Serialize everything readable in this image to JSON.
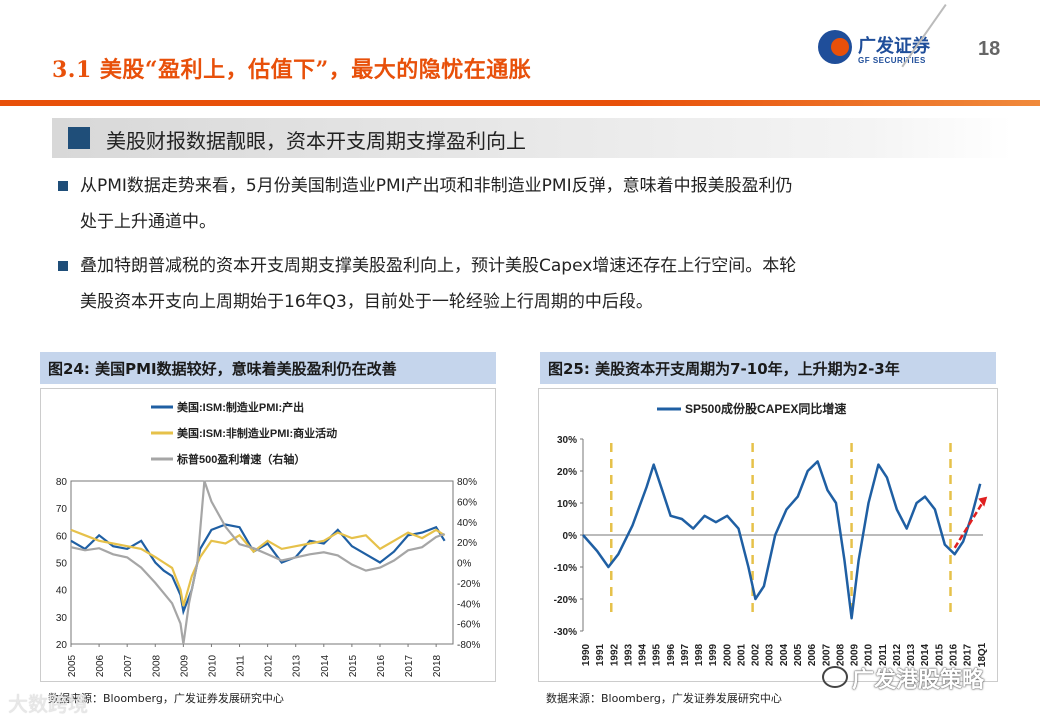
{
  "header": {
    "title": "3.1 美股“盈利上，估值下”，最大的隐忧在通胀",
    "logo_cn": "广发证券",
    "logo_en": "GF SECURITIES",
    "page_number": "18"
  },
  "subheading": "美股财报数据靓眼，资本开支周期支撑盈利向上",
  "bullets": [
    {
      "line1": "从PMI数据走势来看，5月份美国制造业PMI产出项和非制造业PMI反弹，意味着中报美股盈利仍",
      "line2": "处于上升通道中。"
    },
    {
      "line1": "叠加特朗普减税的资本开支周期支撑美股盈利向上，预计美股Capex增速还存在上行空间。本轮",
      "line2": "美股资本开支向上周期始于16年Q3，目前处于一轮经验上行周期的中后段。"
    }
  ],
  "figure24": {
    "caption": "图24:  美国PMI数据较好，意味着美股盈利仍在改善",
    "source": "数据来源：Bloomberg，广发证券发展研究中心"
  },
  "figure25": {
    "caption": "图25:  美股资本开支周期为7-10年，上升期为2-3年",
    "source": "数据来源：Bloomberg，广发证券发展研究中心"
  },
  "watermark": {
    "right": "广发港股策略",
    "left": "大数跨境"
  },
  "colors": {
    "accent": "#e8500a",
    "navy": "#1f4e79",
    "series_blue": "#1f5fa3",
    "series_gold": "#e6c14a",
    "series_gray": "#a6a6a6"
  },
  "chart_data": [
    {
      "type": "line",
      "legend": [
        "美国:ISM:制造业PMI:产出",
        "美国:ISM:非制造业PMI:商业活动",
        "标普500盈利增速（右轴）"
      ],
      "x": [
        "2005",
        "2006",
        "2007",
        "2008",
        "2009",
        "2010",
        "2011",
        "2012",
        "2013",
        "2014",
        "2015",
        "2016",
        "2017",
        "2018"
      ],
      "left_ticks": [
        "80",
        "70",
        "60",
        "50",
        "40",
        "30",
        "20"
      ],
      "right_ticks": [
        "80%",
        "60%",
        "40%",
        "20%",
        "0%",
        "-20%",
        "-40%",
        "-60%",
        "-80%"
      ],
      "ylim_left": [
        20,
        80
      ],
      "ylim_right": [
        -80,
        80
      ],
      "series": [
        {
          "name": "美国:ISM:制造业PMI:产出",
          "color": "#1f5fa3",
          "axis": "left",
          "x": [
            2005,
            2005.5,
            2006,
            2006.5,
            2007,
            2007.5,
            2008,
            2008.3,
            2008.6,
            2008.9,
            2009,
            2009.3,
            2009.6,
            2010,
            2010.5,
            2011,
            2011.5,
            2012,
            2012.5,
            2013,
            2013.5,
            2014,
            2014.5,
            2015,
            2015.5,
            2016,
            2016.5,
            2017,
            2017.5,
            2018,
            2018.3
          ],
          "y": [
            58,
            55,
            60,
            56,
            55,
            58,
            50,
            47,
            45,
            38,
            32,
            40,
            55,
            62,
            64,
            63,
            54,
            57,
            50,
            52,
            58,
            57,
            62,
            56,
            53,
            50,
            54,
            60,
            61,
            63,
            58
          ]
        },
        {
          "name": "美国:ISM:非制造业PMI:商业活动",
          "color": "#e6c14a",
          "axis": "left",
          "x": [
            2005,
            2005.5,
            2006,
            2006.5,
            2007,
            2007.5,
            2008,
            2008.3,
            2008.6,
            2008.9,
            2009,
            2009.3,
            2009.6,
            2010,
            2010.5,
            2011,
            2011.5,
            2012,
            2012.5,
            2013,
            2013.5,
            2014,
            2014.5,
            2015,
            2015.5,
            2016,
            2016.5,
            2017,
            2017.5,
            2018,
            2018.3
          ],
          "y": [
            62,
            60,
            58,
            57,
            56,
            55,
            52,
            50,
            48,
            40,
            34,
            45,
            52,
            58,
            57,
            60,
            54,
            58,
            55,
            56,
            57,
            58,
            61,
            59,
            60,
            55,
            58,
            61,
            59,
            62,
            60
          ]
        },
        {
          "name": "标普500盈利增速（右轴）",
          "color": "#a6a6a6",
          "axis": "right",
          "x": [
            2005,
            2005.5,
            2006,
            2006.5,
            2007,
            2007.5,
            2008,
            2008.3,
            2008.6,
            2008.9,
            2009,
            2009.2,
            2009.5,
            2009.75,
            2010,
            2010.5,
            2011,
            2011.5,
            2012,
            2012.5,
            2013,
            2013.5,
            2014,
            2014.5,
            2015,
            2015.5,
            2016,
            2016.5,
            2017,
            2017.5,
            2018,
            2018.3
          ],
          "y": [
            15,
            12,
            14,
            8,
            5,
            -5,
            -20,
            -30,
            -40,
            -60,
            -80,
            -40,
            0,
            80,
            60,
            35,
            18,
            14,
            8,
            2,
            5,
            8,
            10,
            7,
            -2,
            -8,
            -5,
            2,
            12,
            15,
            25,
            28
          ]
        }
      ]
    },
    {
      "type": "line",
      "title": "SP500成份股CAPEX同比增速",
      "legend": [
        "SP500成份股CAPEX同比增速"
      ],
      "categories": [
        "1990",
        "1991",
        "1992",
        "1993",
        "1994",
        "1995",
        "1996",
        "1997",
        "1998",
        "1999",
        "2000",
        "2001",
        "2002",
        "2003",
        "2004",
        "2005",
        "2006",
        "2007",
        "2008",
        "2009",
        "2010",
        "2011",
        "2012",
        "2013",
        "2014",
        "2015",
        "2016",
        "2017",
        "18Q1"
      ],
      "ylabels": [
        "30%",
        "20%",
        "10%",
        "0%",
        "-10%",
        "-20%",
        "-30%"
      ],
      "ylim": [
        -30,
        30
      ],
      "series": [
        {
          "name": "SP500成份股CAPEX同比增速",
          "color": "#1f5fa3",
          "x": [
            1990,
            1991,
            1991.8,
            1992.5,
            1993.5,
            1994.5,
            1995,
            1995.6,
            1996.2,
            1997,
            1997.8,
            1998.6,
            1999.4,
            2000.2,
            2001,
            2001.7,
            2002.2,
            2002.8,
            2003.6,
            2004.4,
            2005.2,
            2005.9,
            2006.6,
            2007.3,
            2007.9,
            2008.5,
            2009,
            2009.5,
            2010.2,
            2010.9,
            2011.5,
            2012.2,
            2012.9,
            2013.6,
            2014.2,
            2014.9,
            2015.6,
            2016.3,
            2016.9,
            2017.5,
            2018.1
          ],
          "y": [
            0,
            -5,
            -10,
            -6,
            3,
            15,
            22,
            14,
            6,
            5,
            2,
            6,
            4,
            6,
            2,
            -10,
            -20,
            -16,
            0,
            8,
            12,
            20,
            23,
            14,
            10,
            -8,
            -26,
            -8,
            10,
            22,
            18,
            8,
            2,
            10,
            12,
            8,
            -3,
            -6,
            -2,
            6,
            16
          ]
        }
      ],
      "cycle_markers": [
        1992,
        2002,
        2009,
        2016
      ],
      "arrow_trend": "up"
    }
  ]
}
